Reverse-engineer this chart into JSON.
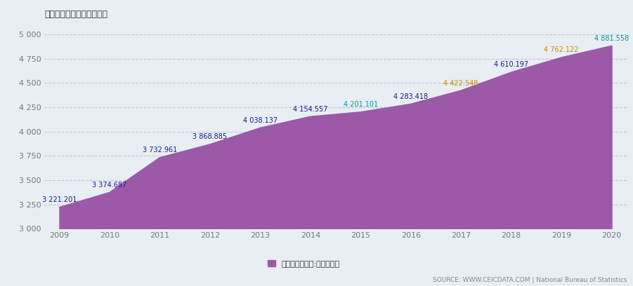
{
  "years": [
    2009,
    2010,
    2011,
    2012,
    2013,
    2014,
    2015,
    2016,
    2017,
    2018,
    2019,
    2020
  ],
  "values": [
    3221.201,
    3374.687,
    3732.961,
    3868.885,
    4038.137,
    4154.557,
    4201.101,
    4283.418,
    4422.548,
    4610.197,
    4762.122,
    4881.558
  ],
  "labels": [
    "3 221.201",
    "3 374.687",
    "3 732.961",
    "3 868.885",
    "4 038.137",
    "4 154.557",
    "4 201.101",
    "4 283.418",
    "4 422.548",
    "4 610.197",
    "4 762.122",
    "4 881.558"
  ],
  "fill_color": "#9B59A8",
  "line_color": "#9B59A8",
  "bg_color": "#E8EEF4",
  "plot_bg_color": "#E8EEF4",
  "ylim": [
    3000,
    5000
  ],
  "yticks": [
    3000,
    3250,
    3500,
    3750,
    4000,
    4250,
    4500,
    4750,
    5000
  ],
  "title": "所选日期没有可用的数据。",
  "legend_label": "综合能源平衡表:终端消费量",
  "source_text": "SOURCE: WWW.CEICDATA.COM | National Bureau of Statistics",
  "label_colors": [
    "#1a1a8c",
    "#1a1a8c",
    "#1a1a8c",
    "#1a1a8c",
    "#1a1a8c",
    "#1a1a8c",
    "#009999",
    "#1a1a8c",
    "#cc8800",
    "#1a1a8c",
    "#cc8800",
    "#009999"
  ],
  "ytick_labels": [
    "3 000",
    "3 250",
    "3 500",
    "3 750",
    "4 000",
    "4 250",
    "4 500",
    "4 750",
    "5 000"
  ]
}
